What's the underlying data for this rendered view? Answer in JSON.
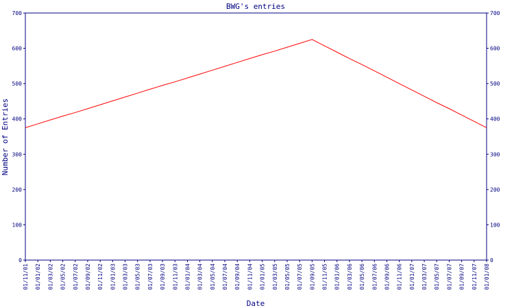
{
  "chart_data": {
    "type": "line",
    "title": "BWG's entries",
    "x_label": "Date",
    "y_label": "Number of Entries",
    "categories": [
      "01/11/01",
      "01/01/02",
      "01/03/02",
      "01/05/02",
      "01/07/02",
      "01/09/02",
      "01/11/02",
      "01/01/03",
      "01/03/03",
      "01/05/03",
      "01/07/03",
      "01/09/03",
      "01/11/03",
      "01/01/04",
      "01/03/04",
      "01/05/04",
      "01/07/04",
      "01/09/04",
      "01/11/04",
      "01/01/05",
      "01/03/05",
      "01/05/05",
      "01/07/05",
      "01/09/05",
      "01/11/05",
      "01/01/06",
      "01/03/06",
      "01/05/06",
      "01/07/06",
      "01/09/06",
      "01/11/06",
      "01/01/07",
      "01/03/07",
      "01/05/07",
      "01/07/07",
      "01/09/07",
      "01/11/07",
      "01/01/08"
    ],
    "series": [
      {
        "color": "#ff0000",
        "values": [
          375,
          386,
          397,
          408,
          418,
          429,
          440,
          451,
          462,
          473,
          484,
          495,
          505,
          516,
          527,
          538,
          549,
          560,
          571,
          582,
          592,
          603,
          614,
          625,
          607,
          589,
          571,
          554,
          536,
          518,
          500,
          482,
          464,
          446,
          429,
          411,
          393,
          375
        ]
      }
    ],
    "ylim": [
      0,
      700
    ],
    "yticks": [
      0,
      100,
      200,
      300,
      400,
      500,
      600,
      700
    ],
    "axis_color": "#000080"
  }
}
